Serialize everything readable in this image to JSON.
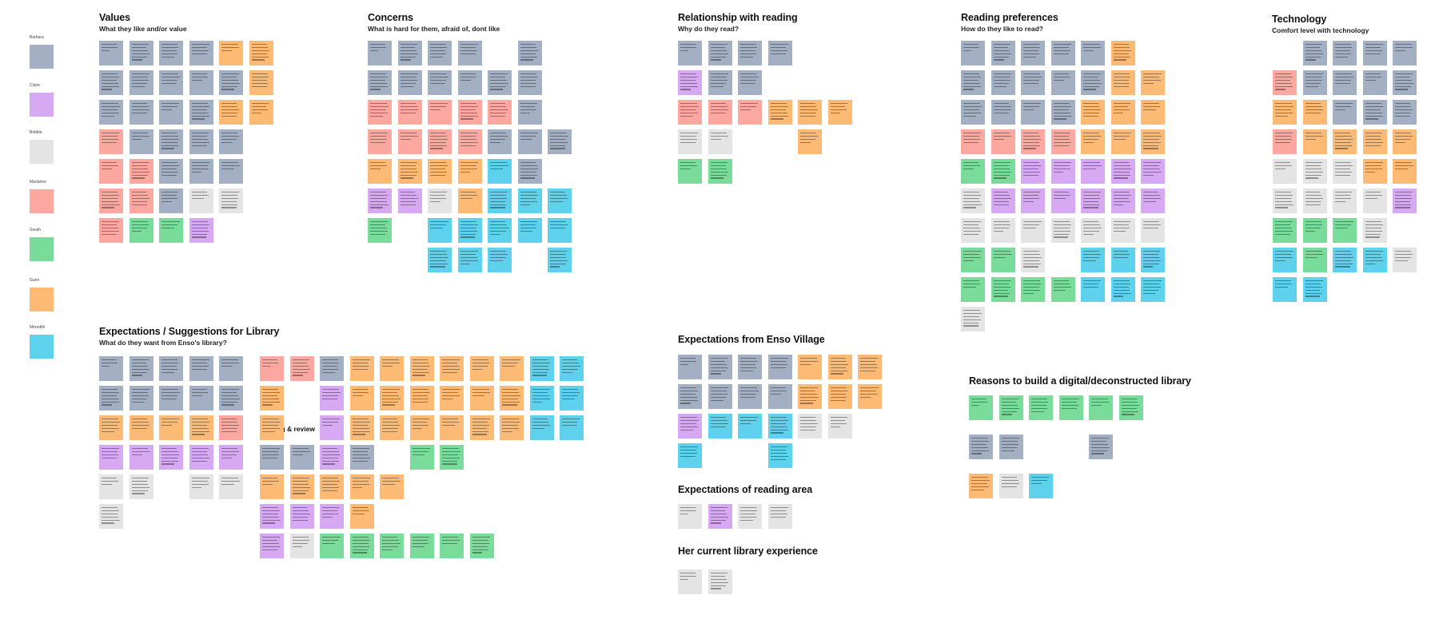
{
  "colors": {
    "barbara": "#a3b0c3",
    "claire": "#d7a9f3",
    "bobbie": "#e4e4e4",
    "marianne": "#fca8a1",
    "swath": "#79dc9b",
    "gunn": "#fdba74",
    "meredith": "#5ed2ec"
  },
  "legend": [
    {
      "name": "Barbara",
      "color_key": "barbara"
    },
    {
      "name": "Claire",
      "color_key": "claire"
    },
    {
      "name": "Bobbie",
      "color_key": "bobbie"
    },
    {
      "name": "Marianne",
      "color_key": "marianne"
    },
    {
      "name": "Swath",
      "color_key": "swath"
    },
    {
      "name": "Gunn",
      "color_key": "gunn"
    },
    {
      "name": "Meredith",
      "color_key": "meredith"
    }
  ],
  "sections": [
    {
      "id": "values",
      "title": "Values",
      "subtitle": "What they like and/or value"
    },
    {
      "id": "concerns",
      "title": "Concerns",
      "subtitle": "What is hard for them, afraid of, dont like"
    },
    {
      "id": "relationship",
      "title": "Relationship with reading",
      "subtitle": "Why do they read?"
    },
    {
      "id": "preferences",
      "title": "Reading preferences",
      "subtitle": "How do they like to read?"
    },
    {
      "id": "technology",
      "title": "Technology",
      "subtitle": "Comfort level with technology"
    },
    {
      "id": "expectations-library",
      "title": "Expectations / Suggestions for Library",
      "subtitle": "What do they want from Enso's library?"
    },
    {
      "id": "expectations-enso",
      "title": "Expectations from Enso Village",
      "subtitle": ""
    },
    {
      "id": "reasons",
      "title": "Reasons to build a digital/deconstructed library",
      "subtitle": ""
    },
    {
      "id": "reading-area",
      "title": "Expectations of reading area",
      "subtitle": ""
    },
    {
      "id": "library-experience",
      "title": "Her current library experience",
      "subtitle": ""
    }
  ],
  "sub_headings": [
    {
      "id": "sharing-review",
      "text": "Sharing & review"
    }
  ],
  "notes": {
    "values": [
      [
        "barbara",
        "barbara",
        "barbara",
        "barbara",
        "gunn",
        "gunn"
      ],
      [
        "barbara",
        "barbara",
        "barbara",
        "barbara",
        "barbara",
        "gunn"
      ],
      [
        "barbara",
        "barbara",
        "barbara",
        "barbara",
        "gunn",
        "gunn"
      ],
      [
        "marianne",
        "barbara",
        "barbara",
        "barbara",
        "barbara"
      ],
      [
        "marianne",
        "marianne",
        "barbara",
        "barbara",
        "barbara"
      ],
      [
        "marianne",
        "marianne",
        "barbara",
        "bobbie",
        "bobbie"
      ],
      [
        "marianne",
        "swath",
        "swath",
        "claire"
      ]
    ],
    "concerns": [
      [
        "barbara",
        "barbara",
        "barbara",
        "barbara",
        "",
        "barbara"
      ],
      [
        "barbara",
        "barbara",
        "barbara",
        "barbara",
        "barbara",
        "barbara"
      ],
      [
        "marianne",
        "marianne",
        "marianne",
        "marianne",
        "marianne",
        "barbara"
      ],
      [
        "marianne",
        "marianne",
        "marianne",
        "marianne",
        "barbara",
        "barbara",
        "barbara"
      ],
      [
        "gunn",
        "gunn",
        "gunn",
        "gunn",
        "meredith",
        "barbara"
      ],
      [
        "claire",
        "claire",
        "bobbie",
        "gunn",
        "meredith",
        "meredith",
        "meredith"
      ],
      [
        "swath",
        "",
        "meredith",
        "meredith",
        "meredith",
        "meredith",
        "meredith"
      ],
      [
        "",
        "",
        "meredith",
        "meredith",
        "meredith",
        "",
        "meredith"
      ]
    ],
    "relationship": [
      [
        "barbara",
        "barbara",
        "barbara",
        "barbara"
      ],
      [
        "claire",
        "barbara",
        "barbara"
      ],
      [
        "marianne",
        "marianne",
        "marianne",
        "gunn",
        "gunn",
        "gunn"
      ],
      [
        "bobbie",
        "bobbie",
        "",
        "",
        "gunn"
      ],
      [
        "swath",
        "swath"
      ]
    ],
    "preferences": [
      [
        "barbara",
        "barbara",
        "barbara",
        "barbara",
        "barbara",
        "gunn"
      ],
      [
        "barbara",
        "barbara",
        "barbara",
        "barbara",
        "barbara",
        "gunn",
        "gunn"
      ],
      [
        "barbara",
        "barbara",
        "barbara",
        "barbara",
        "gunn",
        "gunn",
        "gunn"
      ],
      [
        "marianne",
        "marianne",
        "marianne",
        "marianne",
        "gunn",
        "gunn",
        "gunn"
      ],
      [
        "swath",
        "swath",
        "claire",
        "claire",
        "claire",
        "claire",
        "claire"
      ],
      [
        "bobbie",
        "claire",
        "claire",
        "claire",
        "claire",
        "claire",
        "claire"
      ],
      [
        "bobbie",
        "bobbie",
        "bobbie",
        "bobbie",
        "bobbie",
        "bobbie",
        "bobbie"
      ],
      [
        "swath",
        "swath",
        "bobbie",
        "",
        "meredith",
        "meredith",
        "meredith"
      ],
      [
        "swath",
        "swath",
        "swath",
        "swath",
        "meredith",
        "meredith",
        "meredith"
      ],
      [
        "bobbie"
      ]
    ],
    "technology": [
      [
        "",
        "barbara",
        "barbara",
        "barbara",
        "barbara"
      ],
      [
        "marianne",
        "barbara",
        "barbara",
        "barbara",
        "barbara"
      ],
      [
        "gunn",
        "gunn",
        "barbara",
        "barbara",
        "barbara"
      ],
      [
        "marianne",
        "gunn",
        "gunn",
        "gunn",
        "gunn"
      ],
      [
        "bobbie",
        "bobbie",
        "bobbie",
        "gunn",
        "gunn"
      ],
      [
        "bobbie",
        "bobbie",
        "bobbie",
        "bobbie",
        "claire"
      ],
      [
        "swath",
        "swath",
        "swath",
        "bobbie"
      ],
      [
        "meredith",
        "swath",
        "meredith",
        "meredith",
        "bobbie"
      ],
      [
        "meredith",
        "meredith"
      ]
    ],
    "expectations-library": [
      [
        "barbara",
        "barbara",
        "barbara",
        "barbara",
        "barbara"
      ],
      [
        "barbara",
        "barbara",
        "barbara",
        "barbara",
        "barbara"
      ],
      [
        "gunn",
        "gunn",
        "gunn",
        "gunn",
        "marianne"
      ],
      [
        "claire",
        "claire",
        "claire",
        "claire",
        "claire"
      ],
      [
        "bobbie",
        "bobbie",
        "",
        "bobbie",
        "bobbie"
      ],
      [
        "bobbie"
      ]
    ],
    "expectations-library-b": [
      [
        "marianne",
        "marianne",
        "barbara",
        "gunn",
        "gunn",
        "gunn",
        "gunn",
        "gunn",
        "gunn",
        "meredith",
        "meredith"
      ],
      [
        "gunn",
        "",
        "claire",
        "gunn",
        "gunn",
        "gunn",
        "gunn",
        "gunn",
        "gunn",
        "meredith",
        "meredith"
      ],
      [
        "gunn",
        "",
        "claire",
        "gunn",
        "gunn",
        "gunn",
        "gunn",
        "gunn",
        "gunn",
        "meredith",
        "meredith"
      ],
      [
        "barbara",
        "barbara",
        "claire",
        "barbara",
        "",
        "swath",
        "swath"
      ],
      [
        "gunn",
        "gunn",
        "gunn",
        "gunn",
        "gunn"
      ],
      [
        "claire",
        "claire",
        "claire",
        "gunn"
      ],
      [
        "claire",
        "bobbie",
        "swath",
        "swath",
        "swath",
        "swath",
        "swath",
        "swath"
      ]
    ],
    "expectations-enso": [
      [
        "barbara",
        "barbara",
        "barbara",
        "barbara",
        "gunn",
        "gunn",
        "gunn"
      ],
      [
        "barbara",
        "barbara",
        "barbara",
        "barbara",
        "gunn",
        "gunn",
        "gunn"
      ],
      [
        "claire",
        "meredith",
        "meredith",
        "meredith",
        "bobbie",
        "bobbie"
      ],
      [
        "meredith",
        "",
        "",
        "meredith"
      ]
    ],
    "reasons": [
      [
        "swath",
        "swath",
        "swath",
        "swath",
        "swath",
        "swath"
      ],
      [
        "barbara",
        "barbara",
        "",
        "",
        "barbara"
      ],
      [
        "gunn",
        "bobbie",
        "meredith"
      ]
    ],
    "reading-area": [
      [
        "bobbie",
        "claire",
        "bobbie",
        "bobbie"
      ]
    ],
    "library-experience": [
      [
        "bobbie",
        "bobbie"
      ]
    ]
  }
}
